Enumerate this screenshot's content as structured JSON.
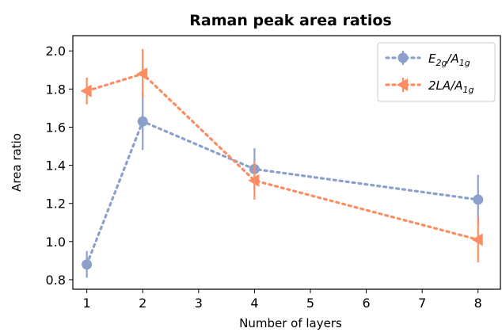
{
  "chart_data": {
    "type": "line",
    "title": "Raman peak area ratios",
    "xlabel": "Number of layers",
    "ylabel": "Area ratio",
    "xlim": [
      0.75,
      8.4
    ],
    "ylim": [
      0.75,
      2.08
    ],
    "xticks": [
      1,
      2,
      3,
      4,
      5,
      6,
      7,
      8
    ],
    "yticks": [
      0.8,
      1.0,
      1.2,
      1.4,
      1.6,
      1.8,
      2.0
    ],
    "ytick_labels": [
      "0.8",
      "1.0",
      "1.2",
      "1.4",
      "1.6",
      "1.8",
      "2.0"
    ],
    "grid": false,
    "legend_position": "top-right",
    "series": [
      {
        "name": "E2g/A1g",
        "legend_base": "E",
        "legend_sub1": "2g",
        "legend_mid": "/A",
        "legend_sub2": "1g",
        "marker": "circle",
        "color": "#8da0cb",
        "x": [
          1,
          2,
          4,
          8
        ],
        "y": [
          0.88,
          1.63,
          1.38,
          1.22
        ],
        "err": [
          0.07,
          0.15,
          0.11,
          0.13
        ]
      },
      {
        "name": "2LA/A1g",
        "legend_base": "2LA",
        "legend_sub1": "",
        "legend_mid": "/A",
        "legend_sub2": "1g",
        "marker": "triangle-left",
        "color": "#fc8d62",
        "x": [
          1,
          2,
          4,
          8
        ],
        "y": [
          1.79,
          1.88,
          1.32,
          1.01
        ],
        "err": [
          0.07,
          0.13,
          0.1,
          0.12
        ]
      }
    ]
  }
}
